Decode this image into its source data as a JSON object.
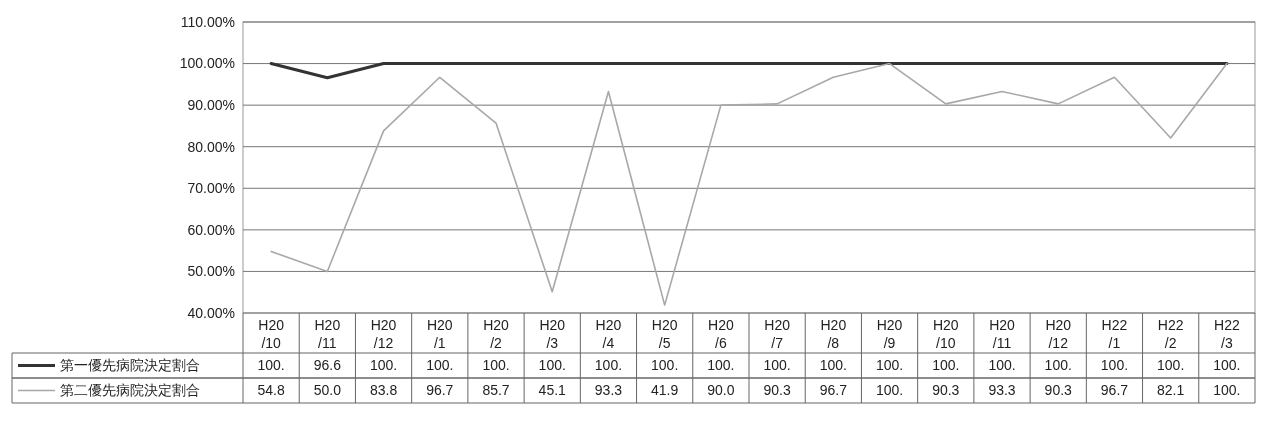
{
  "chart_data": {
    "type": "line",
    "categories": [
      "H20/10",
      "H20/11",
      "H20/12",
      "H20/1",
      "H20/2",
      "H20/3",
      "H20/4",
      "H20/5",
      "H20/6",
      "H20/7",
      "H20/8",
      "H20/9",
      "H20/10",
      "H20/11",
      "H20/12",
      "H22/1",
      "H22/2",
      "H22/3"
    ],
    "series": [
      {
        "name": "第一優先病院決定割合",
        "color": "#333333",
        "values": [
          100,
          96.6,
          100,
          100,
          100,
          100,
          100,
          100,
          100,
          100,
          100,
          100,
          100,
          100,
          100,
          100,
          100,
          100
        ],
        "value_labels": [
          "100.",
          "96.6",
          "100.",
          "100.",
          "100.",
          "100.",
          "100.",
          "100.",
          "100.",
          "100.",
          "100.",
          "100.",
          "100.",
          "100.",
          "100.",
          "100.",
          "100.",
          "100."
        ]
      },
      {
        "name": "第二優先病院決定割合",
        "color": "#a8a8a8",
        "values": [
          54.8,
          50.0,
          83.8,
          96.7,
          85.7,
          45.1,
          93.3,
          41.9,
          90.0,
          90.3,
          96.7,
          100,
          90.3,
          93.3,
          90.3,
          96.7,
          82.1,
          100
        ],
        "value_labels": [
          "54.8",
          "50.0",
          "83.8",
          "96.7",
          "85.7",
          "45.1",
          "93.3",
          "41.9",
          "90.0",
          "90.3",
          "96.7",
          "100.",
          "90.3",
          "93.3",
          "90.3",
          "96.7",
          "82.1",
          "100."
        ]
      }
    ],
    "ylim": [
      40,
      110
    ],
    "yticks": [
      {
        "value": 40,
        "label": "40.00%"
      },
      {
        "value": 50,
        "label": "50.00%"
      },
      {
        "value": 60,
        "label": "60.00%"
      },
      {
        "value": 70,
        "label": "70.00%"
      },
      {
        "value": 80,
        "label": "80.00%"
      },
      {
        "value": 90,
        "label": "90.00%"
      },
      {
        "value": 100,
        "label": "100.00%"
      },
      {
        "value": 110,
        "label": "110.00%"
      }
    ],
    "grid": "y",
    "legend": "bottom left",
    "marker": "none",
    "line_style": "solid"
  }
}
